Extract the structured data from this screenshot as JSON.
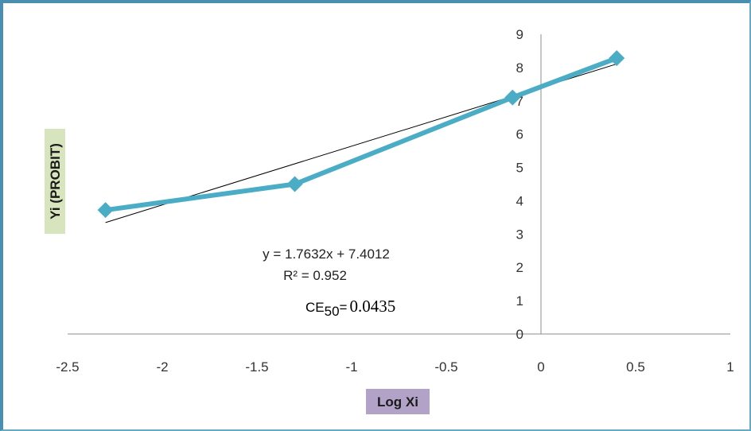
{
  "chart_data": {
    "type": "scatter",
    "xlabel": "Log Xi",
    "ylabel": "Yi (PROBIT)",
    "xlim": [
      -2.5,
      1
    ],
    "ylim": [
      0,
      9
    ],
    "x_ticks": [
      "-2.5",
      "-2",
      "-1.5",
      "-1",
      "-0.5",
      "0",
      "0.5",
      "1"
    ],
    "y_ticks": [
      "0",
      "1",
      "2",
      "3",
      "4",
      "5",
      "6",
      "7",
      "8",
      "9"
    ],
    "series": [
      {
        "x": [
          -2.3,
          -1.3,
          -0.15,
          0.4
        ],
        "y": [
          3.72,
          4.5,
          7.1,
          8.28
        ]
      }
    ],
    "trendline": {
      "slope": 1.7632,
      "intercept": 7.4012,
      "x_range": [
        -2.3,
        0.4
      ]
    },
    "annotations": {
      "equation": "y = 1.7632x + 7.4012",
      "r2_label": "R² = 0.952",
      "ce_prefix": "CE",
      "ce_subscript": "50",
      "ce_eq": "=",
      "ce_value": "0.0435"
    },
    "colors": {
      "series": "#4bacc6",
      "trendline": "#000000",
      "ylabel_bg": "#d7e4bd",
      "xlabel_bg": "#b3a2c7",
      "frame": "#4a8fb0"
    }
  }
}
